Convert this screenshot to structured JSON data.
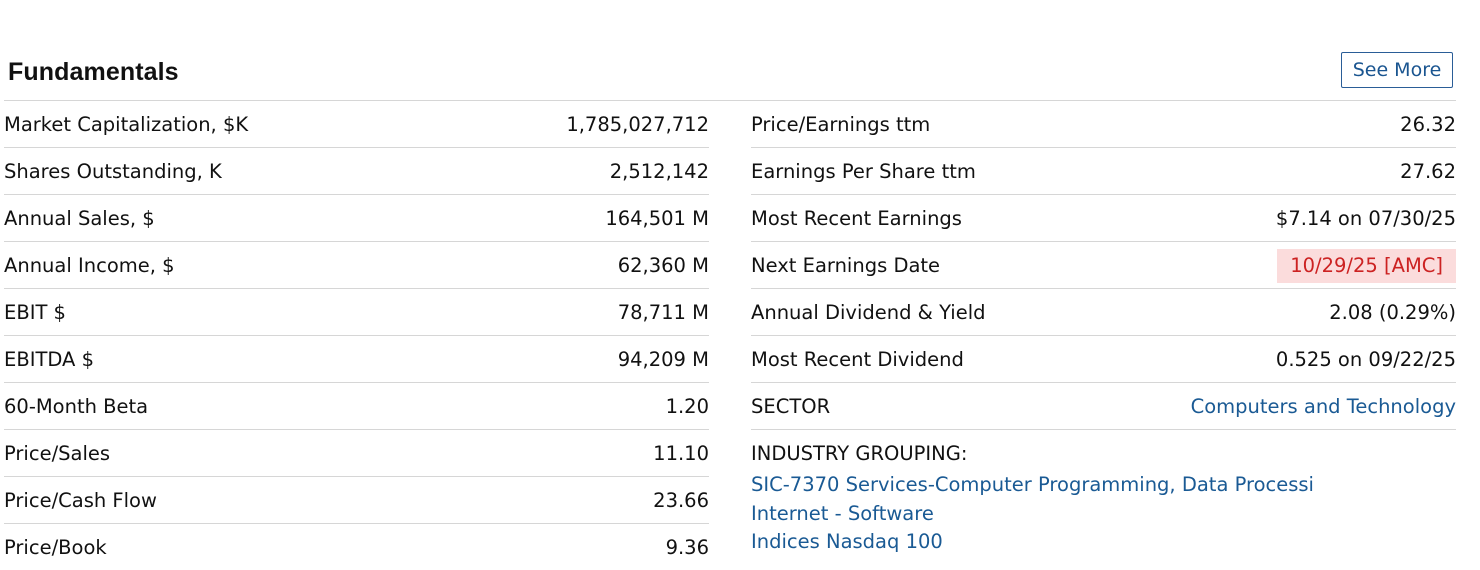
{
  "section": {
    "title": "Fundamentals",
    "see_more": "See More"
  },
  "left_rows": [
    {
      "label": "Market Capitalization, $K",
      "value": "1,785,027,712"
    },
    {
      "label": "Shares Outstanding, K",
      "value": "2,512,142"
    },
    {
      "label": "Annual Sales, $",
      "value": "164,501 M"
    },
    {
      "label": "Annual Income, $",
      "value": "62,360 M"
    },
    {
      "label": "EBIT $",
      "value": "78,711 M"
    },
    {
      "label": "EBITDA $",
      "value": "94,209 M"
    },
    {
      "label": "60-Month Beta",
      "value": "1.20"
    },
    {
      "label": "Price/Sales",
      "value": "11.10"
    },
    {
      "label": "Price/Cash Flow",
      "value": "23.66"
    },
    {
      "label": "Price/Book",
      "value": "9.36"
    }
  ],
  "right_rows": [
    {
      "label": "Price/Earnings ttm",
      "value": "26.32"
    },
    {
      "label": "Earnings Per Share ttm",
      "value": "27.62"
    },
    {
      "label": "Most Recent Earnings",
      "value": "$7.14 on 07/30/25"
    },
    {
      "label": "Next Earnings Date",
      "value": "10/29/25 [AMC]"
    },
    {
      "label": "Annual Dividend & Yield",
      "value": "2.08 (0.29%)"
    },
    {
      "label": "Most Recent Dividend",
      "value": "0.525 on 09/22/25"
    },
    {
      "label": "SECTOR",
      "value": "Computers and Technology"
    }
  ],
  "industry": {
    "label": "INDUSTRY GROUPING:",
    "links": [
      "SIC-7370 Services-Computer Programming, Data Processi",
      "Internet - Software",
      "Indices Nasdaq 100"
    ]
  },
  "colors": {
    "link": "#1a5a94",
    "badge_bg": "#fbdcdc",
    "badge_text": "#cc2222",
    "divider": "#d6d6d6"
  }
}
